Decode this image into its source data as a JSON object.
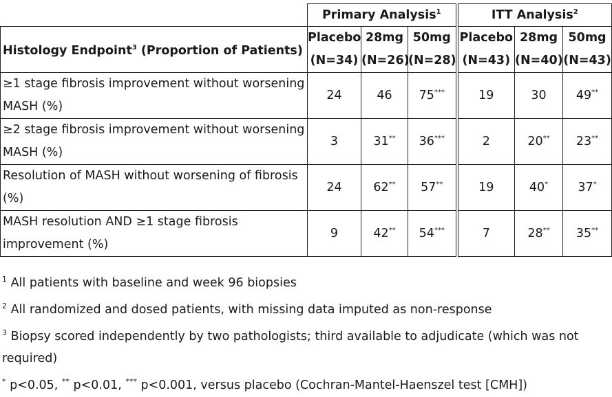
{
  "table": {
    "groups": {
      "primary": {
        "label": "Primary Analysis",
        "ref": "1"
      },
      "itt": {
        "label": "ITT Analysis",
        "ref": "2"
      }
    },
    "endpoint_header": {
      "label_a": "Histology Endpoint",
      "ref": "3",
      "label_b": " (Proportion of Patients)"
    },
    "columns": [
      {
        "dose": "Placebo",
        "n": "(N=34)"
      },
      {
        "dose": "28mg",
        "n": "(N=26)"
      },
      {
        "dose": "50mg",
        "n": "(N=28)"
      },
      {
        "dose": "Placebo",
        "n": "(N=43)"
      },
      {
        "dose": "28mg",
        "n": "(N=40)"
      },
      {
        "dose": "50mg",
        "n": "(N=43)"
      }
    ],
    "rows": [
      {
        "endpoint": "≥1 stage fibrosis improvement without worsening MASH (%)",
        "cells": [
          {
            "v": "24",
            "sig": ""
          },
          {
            "v": "46",
            "sig": ""
          },
          {
            "v": "75",
            "sig": "***"
          },
          {
            "v": "19",
            "sig": ""
          },
          {
            "v": "30",
            "sig": ""
          },
          {
            "v": "49",
            "sig": "**"
          }
        ]
      },
      {
        "endpoint": "≥2 stage fibrosis improvement without worsening MASH (%)",
        "cells": [
          {
            "v": "3",
            "sig": ""
          },
          {
            "v": "31",
            "sig": "**"
          },
          {
            "v": "36",
            "sig": "***"
          },
          {
            "v": "2",
            "sig": ""
          },
          {
            "v": "20",
            "sig": "**"
          },
          {
            "v": "23",
            "sig": "**"
          }
        ]
      },
      {
        "endpoint": "Resolution of MASH without worsening of fibrosis (%)",
        "cells": [
          {
            "v": "24",
            "sig": ""
          },
          {
            "v": "62",
            "sig": "**"
          },
          {
            "v": "57",
            "sig": "**"
          },
          {
            "v": "19",
            "sig": ""
          },
          {
            "v": "40",
            "sig": "*"
          },
          {
            "v": "37",
            "sig": "*"
          }
        ]
      },
      {
        "endpoint": "MASH resolution AND ≥1 stage fibrosis improvement (%)",
        "cells": [
          {
            "v": "9",
            "sig": ""
          },
          {
            "v": "42",
            "sig": "**"
          },
          {
            "v": "54",
            "sig": "***"
          },
          {
            "v": "7",
            "sig": ""
          },
          {
            "v": "28",
            "sig": "**"
          },
          {
            "v": "35",
            "sig": "**"
          }
        ]
      }
    ]
  },
  "footnotes": [
    {
      "mark": "1",
      "text": " All patients with baseline and week 96 biopsies"
    },
    {
      "mark": "2",
      "text": " All randomized and dosed patients, with missing data imputed as non-response"
    },
    {
      "mark": "3",
      "text": " Biopsy scored independently by two pathologists; third available to adjudicate (which was not required)"
    }
  ],
  "significance_note": [
    {
      "mark": "*",
      "text": " p<0.05, "
    },
    {
      "mark": "**",
      "text": " p<0.01, "
    },
    {
      "mark": "***",
      "text": " p<0.001, versus placebo (Cochran-Mantel-Haenszel test [CMH])"
    }
  ]
}
